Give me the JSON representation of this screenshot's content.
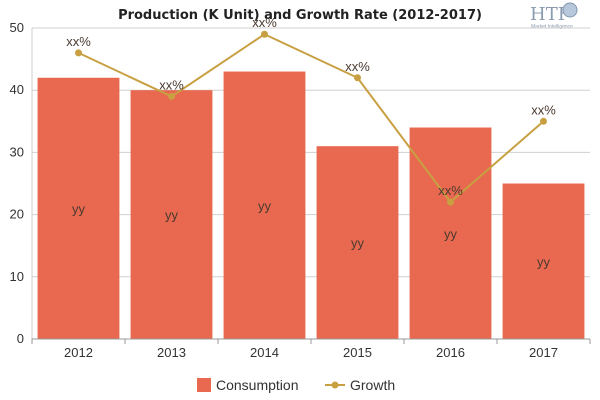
{
  "chart_data": {
    "type": "bar",
    "title": "Production (K Unit) and Growth Rate (2012-2017)",
    "categories": [
      "2012",
      "2013",
      "2014",
      "2015",
      "2016",
      "2017"
    ],
    "ylim": [
      0,
      50
    ],
    "yticks": [
      0,
      10,
      20,
      30,
      40,
      50
    ],
    "grid": true,
    "legend_position": "bottom",
    "series": [
      {
        "name": "Consumption",
        "kind": "bar",
        "color": "#e8694f",
        "values": [
          42,
          40,
          43,
          31,
          34,
          25
        ],
        "labels": [
          "yy",
          "yy",
          "yy",
          "yy",
          "yy",
          "yy"
        ]
      },
      {
        "name": "Growth",
        "kind": "line",
        "color": "#c8a042",
        "values": [
          46,
          39,
          49,
          42,
          22,
          35
        ],
        "labels": [
          "xx%",
          "xx%",
          "xx%",
          "xx%",
          "xx%",
          "xx%"
        ]
      }
    ]
  },
  "logo": {
    "brand": "HTF",
    "tagline": "Market Intelligence"
  }
}
